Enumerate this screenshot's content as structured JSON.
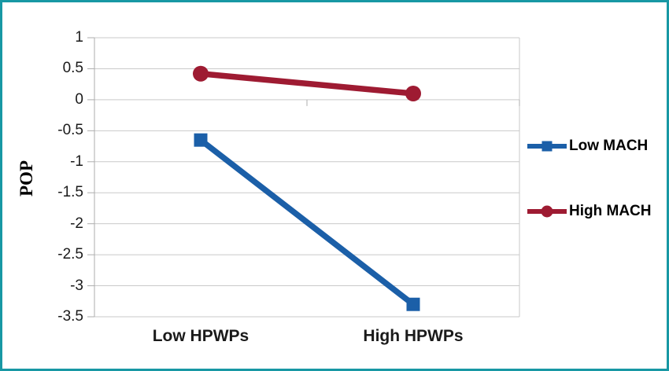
{
  "window": {
    "background": "#ffffff",
    "border_color": "#1898A4"
  },
  "chart_data": {
    "type": "line",
    "title": "",
    "categories": [
      "Low HPWPs",
      "High HPWPs"
    ],
    "series": [
      {
        "name": "Low MACH",
        "values": [
          -0.65,
          -3.3
        ],
        "color": "#1B5FA8",
        "marker": "square"
      },
      {
        "name": "High MACH",
        "values": [
          0.42,
          0.1
        ],
        "color": "#9E1B32",
        "marker": "circle"
      }
    ],
    "xlabel": "",
    "ylabel": "POP",
    "ylim": [
      -3.5,
      1
    ],
    "ytick_step": 0.5,
    "yticks": [
      "1",
      "0.5",
      "0",
      "-0.5",
      "-1",
      "-1.5",
      "-2",
      "-2.5",
      "-3",
      "-3.5"
    ],
    "grid": true,
    "gridline_color": "#C9C9C9",
    "axis_color": "#ADADAD",
    "legend_position": "right",
    "legend": [
      "Low MACH",
      "High MACH"
    ]
  }
}
